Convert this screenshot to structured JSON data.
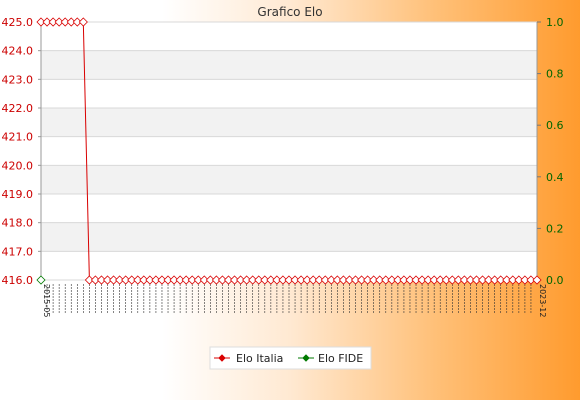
{
  "chart_data": {
    "type": "line",
    "title": "Grafico Elo",
    "xlabel": "",
    "ylabel": "",
    "ylim_left": [
      416.0,
      425.0
    ],
    "ylim_right": [
      0.0,
      1.0
    ],
    "y_ticks_left": [
      "416.0",
      "417.0",
      "418.0",
      "419.0",
      "420.0",
      "421.0",
      "422.0",
      "423.0",
      "424.0",
      "425.0"
    ],
    "y_ticks_right": [
      "0.0",
      "0.2",
      "0.4",
      "0.6",
      "0.8",
      "1.0"
    ],
    "x_first_label": "2015-05",
    "x_last_label": "2023-12",
    "grid": "horizontal",
    "legend_position": "bottom",
    "colors": {
      "elo_italia": "#d90000",
      "elo_fide": "#007a00"
    },
    "series": [
      {
        "name": "Elo Italia",
        "axis": "left",
        "segments": [
          {
            "count": 8,
            "value": 425.0
          },
          {
            "count": 75,
            "value": 416.0
          }
        ]
      },
      {
        "name": "Elo FIDE",
        "axis": "right",
        "segments": [
          {
            "count": 1,
            "value": 0.0
          }
        ]
      }
    ]
  }
}
